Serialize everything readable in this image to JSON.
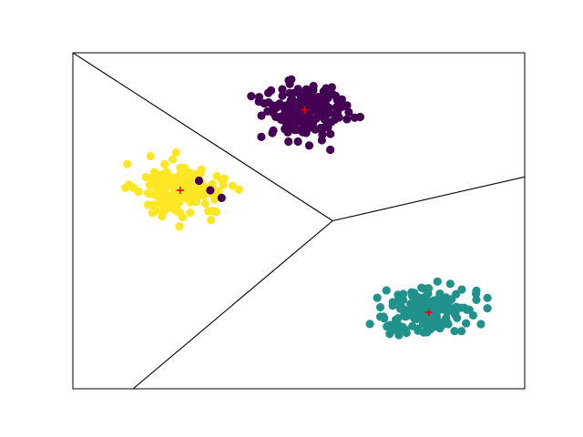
{
  "chart_data": {
    "type": "scatter",
    "title": "",
    "xlabel": "",
    "ylabel": "",
    "xlim": [
      -6.0,
      6.0
    ],
    "ylim": [
      -4.4,
      4.4
    ],
    "axes_ticks": "hidden",
    "grid": false,
    "legend": "none",
    "colors": {
      "cluster_0": "#440154",
      "cluster_1": "#21918c",
      "cluster_2": "#fde725",
      "centroid": "#e8000b",
      "boundary": "#000000"
    },
    "series": [
      {
        "cluster": 0,
        "color": "#440154",
        "center": [
          0.15,
          2.9
        ],
        "spread": [
          0.6,
          0.4
        ],
        "count": 170
      },
      {
        "cluster": 1,
        "color": "#21918c",
        "center": [
          3.45,
          -2.4
        ],
        "spread": [
          0.6,
          0.35
        ],
        "count": 170
      },
      {
        "cluster": 2,
        "color": "#fde725",
        "center": [
          -3.15,
          0.8
        ],
        "spread": [
          0.6,
          0.38
        ],
        "count": 165
      }
    ],
    "stray_points": [
      {
        "cluster": 0,
        "x": -2.65,
        "y": 1.05
      },
      {
        "cluster": 0,
        "x": -2.35,
        "y": 0.8
      },
      {
        "cluster": 0,
        "x": -2.05,
        "y": 0.6
      }
    ],
    "centroids": [
      {
        "cluster": 0,
        "x": 0.15,
        "y": 2.9
      },
      {
        "cluster": 1,
        "x": 3.45,
        "y": -2.4
      },
      {
        "cluster": 2,
        "x": -3.15,
        "y": 0.8
      }
    ],
    "decision_boundaries": [
      {
        "from": [
          0.9,
          0.0
        ],
        "to": [
          -6.0,
          4.4
        ]
      },
      {
        "from": [
          0.9,
          0.0
        ],
        "to": [
          6.0,
          1.15
        ]
      },
      {
        "from": [
          0.9,
          0.0
        ],
        "to": [
          -4.4,
          -4.4
        ]
      }
    ]
  }
}
